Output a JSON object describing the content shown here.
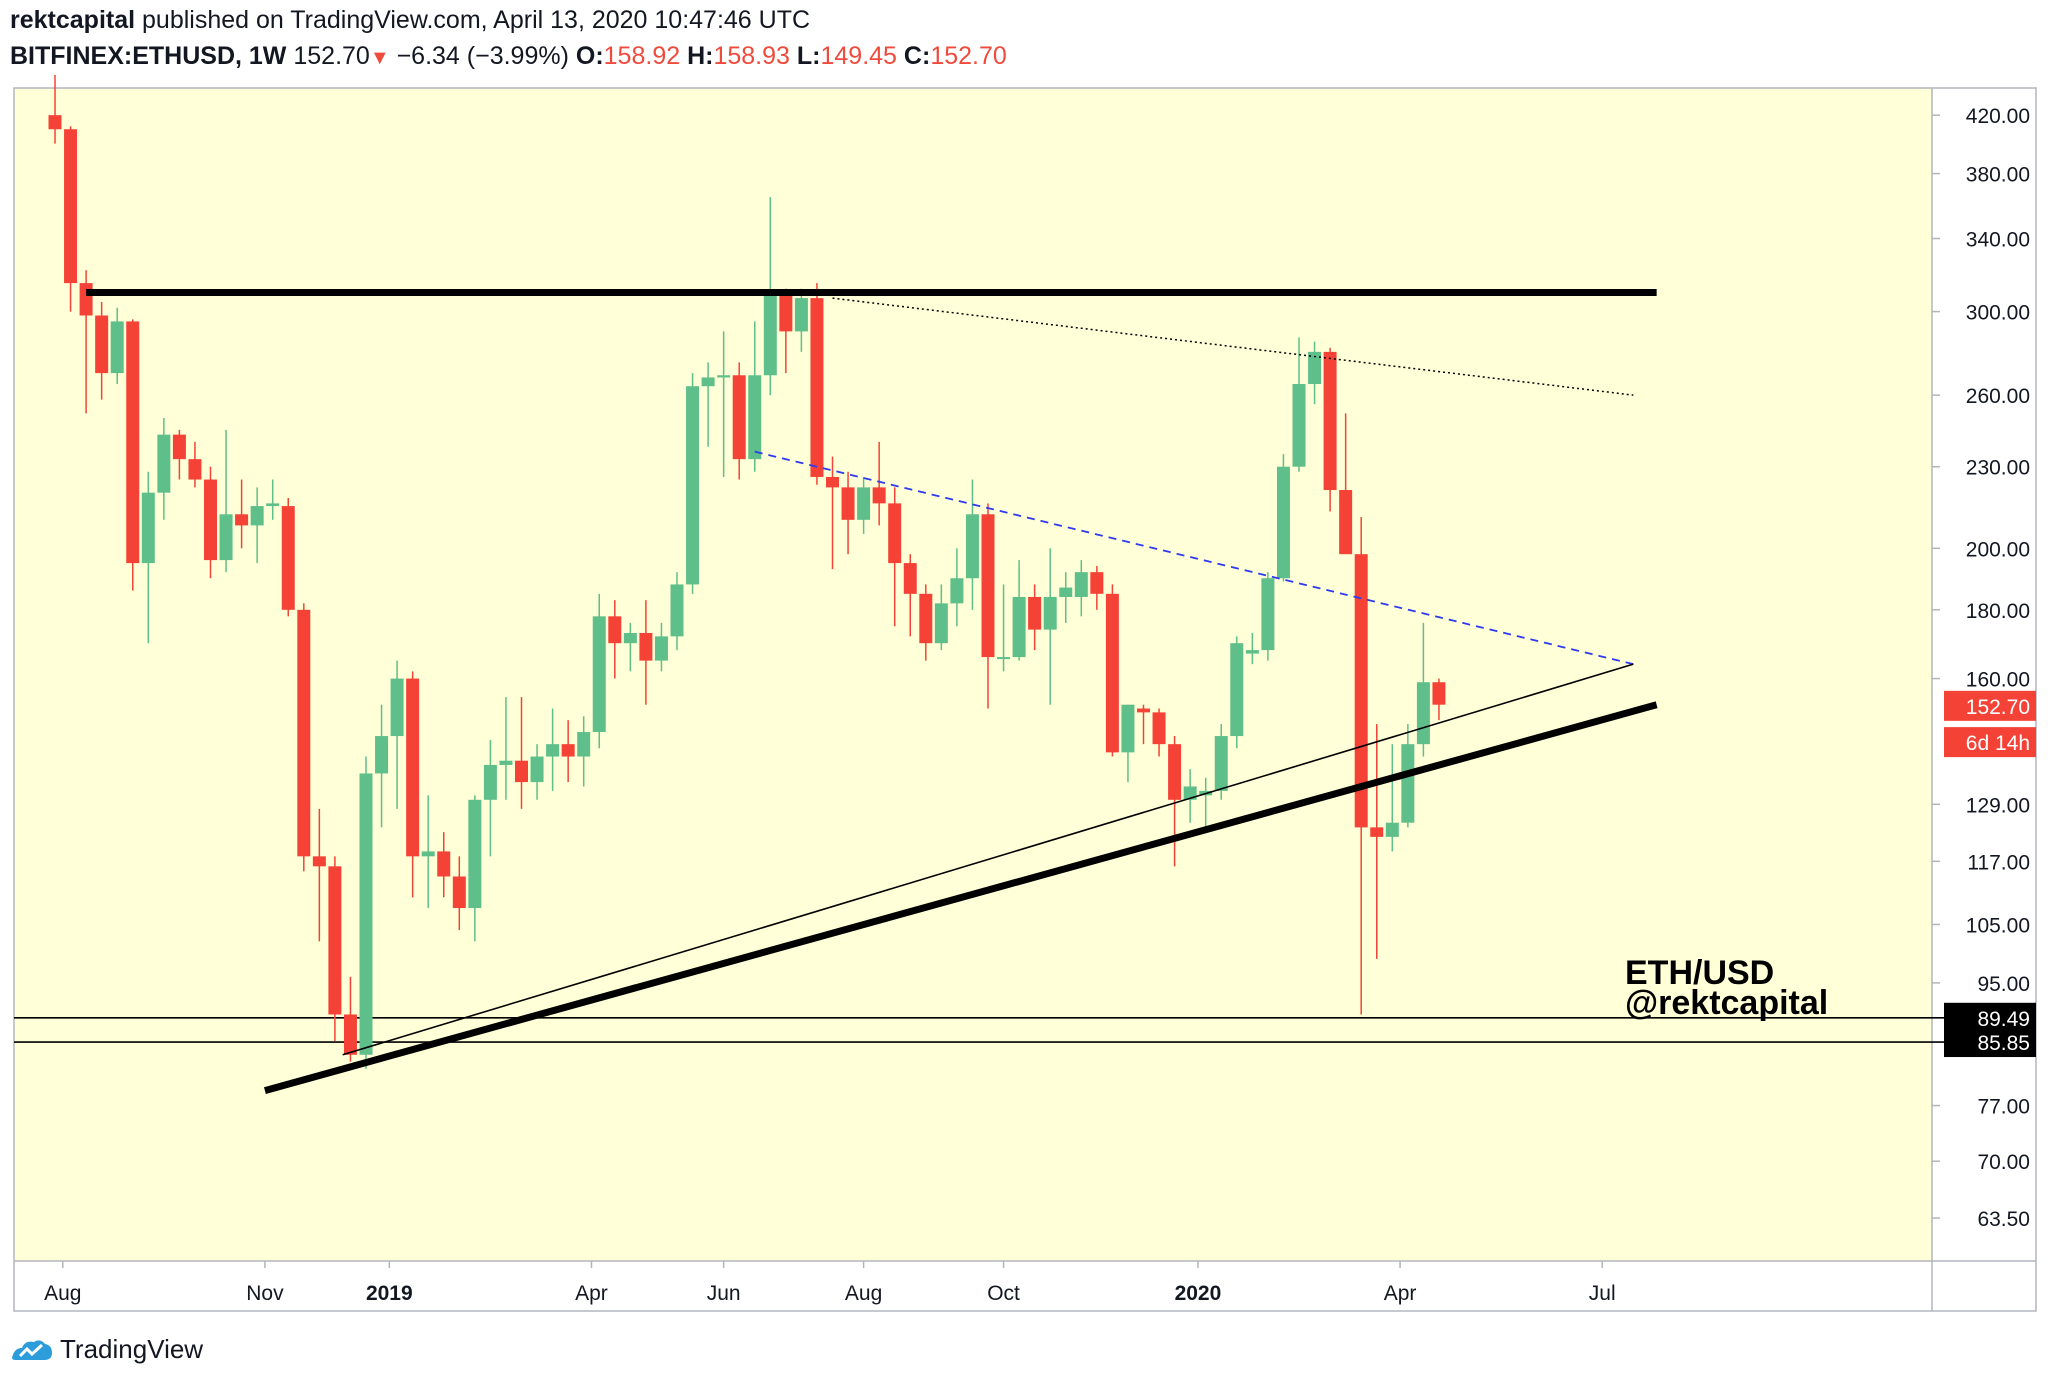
{
  "header": {
    "author": "rektcapital",
    "published_text": "published on TradingView.com, April 13, 2020 10:47:46 UTC",
    "symbol": "BITFINEX:ETHUSD, 1W",
    "last_price": "152.70",
    "change": "−6.34 (−3.99%)",
    "open_label": "O:",
    "open": "158.92",
    "high_label": "H:",
    "high": "158.93",
    "low_label": "L:",
    "low": "149.45",
    "close_label": "C:",
    "close": "152.70"
  },
  "footer": {
    "brand": "TradingView",
    "icon": "tradingview-logo-icon"
  },
  "watermark": {
    "line1": "ETH/USD",
    "line2": "@rektcapital"
  },
  "colors": {
    "background": "#ffffd8",
    "up": "#5fbf8a",
    "down": "#f44336",
    "trendline": "#000000",
    "dashed": "#2e3af0"
  },
  "chart_data": {
    "type": "candlestick",
    "title": "BITFINEX:ETHUSD, 1W",
    "scale": "log",
    "ylim": [
      59,
      440
    ],
    "y_ticks": [
      "420.00",
      "380.00",
      "340.00",
      "300.00",
      "260.00",
      "230.00",
      "200.00",
      "180.00",
      "160.00",
      "129.00",
      "117.00",
      "105.00",
      "95.00",
      "77.00",
      "70.00",
      "63.50"
    ],
    "x_ticks": [
      {
        "label": "Aug",
        "week": 0.5
      },
      {
        "label": "Nov",
        "week": 13.5
      },
      {
        "label": "2019",
        "week": 21.5,
        "bold": true
      },
      {
        "label": "Apr",
        "week": 34.5
      },
      {
        "label": "Jun",
        "week": 43
      },
      {
        "label": "Aug",
        "week": 52
      },
      {
        "label": "Oct",
        "week": 61
      },
      {
        "label": "2020",
        "week": 73.5,
        "bold": true
      },
      {
        "label": "Apr",
        "week": 86.5
      },
      {
        "label": "Jul",
        "week": 99.5
      }
    ],
    "price_labels": [
      {
        "text": "152.70",
        "value": 152.7,
        "style": "red"
      },
      {
        "text": "6d 14h",
        "value": 143.5,
        "style": "red"
      },
      {
        "text": "89.49",
        "value": 89.49,
        "style": "black"
      },
      {
        "text": "85.85",
        "value": 85.85,
        "style": "black"
      }
    ],
    "candles": [
      {
        "o": 420,
        "h": 450,
        "l": 400,
        "c": 410
      },
      {
        "o": 410,
        "h": 412,
        "l": 300,
        "c": 315
      },
      {
        "o": 315,
        "h": 322,
        "l": 252,
        "c": 298
      },
      {
        "o": 298,
        "h": 305,
        "l": 258,
        "c": 270
      },
      {
        "o": 270,
        "h": 302,
        "l": 265,
        "c": 295
      },
      {
        "o": 295,
        "h": 296,
        "l": 186,
        "c": 195
      },
      {
        "o": 195,
        "h": 228,
        "l": 170,
        "c": 220
      },
      {
        "o": 220,
        "h": 250,
        "l": 210,
        "c": 243
      },
      {
        "o": 243,
        "h": 245,
        "l": 225,
        "c": 233
      },
      {
        "o": 233,
        "h": 240,
        "l": 222,
        "c": 225
      },
      {
        "o": 225,
        "h": 230,
        "l": 190,
        "c": 196
      },
      {
        "o": 196,
        "h": 245,
        "l": 192,
        "c": 212
      },
      {
        "o": 212,
        "h": 225,
        "l": 200,
        "c": 208
      },
      {
        "o": 208,
        "h": 222,
        "l": 195,
        "c": 215
      },
      {
        "o": 215,
        "h": 225,
        "l": 210,
        "c": 216
      },
      {
        "o": 215,
        "h": 218,
        "l": 178,
        "c": 180
      },
      {
        "o": 180,
        "h": 182,
        "l": 115,
        "c": 118
      },
      {
        "o": 118,
        "h": 128,
        "l": 102,
        "c": 116
      },
      {
        "o": 116,
        "h": 118,
        "l": 86,
        "c": 90
      },
      {
        "o": 90,
        "h": 96,
        "l": 83,
        "c": 84
      },
      {
        "o": 84,
        "h": 140,
        "l": 82,
        "c": 136
      },
      {
        "o": 136,
        "h": 153,
        "l": 124,
        "c": 145
      },
      {
        "o": 145,
        "h": 165,
        "l": 128,
        "c": 160
      },
      {
        "o": 160,
        "h": 162,
        "l": 110,
        "c": 118
      },
      {
        "o": 118,
        "h": 131,
        "l": 108,
        "c": 119
      },
      {
        "o": 119,
        "h": 123,
        "l": 110,
        "c": 114
      },
      {
        "o": 114,
        "h": 118,
        "l": 104,
        "c": 108
      },
      {
        "o": 108,
        "h": 131,
        "l": 102,
        "c": 130
      },
      {
        "o": 130,
        "h": 144,
        "l": 118,
        "c": 138
      },
      {
        "o": 138,
        "h": 155,
        "l": 130,
        "c": 139
      },
      {
        "o": 139,
        "h": 155,
        "l": 128,
        "c": 134
      },
      {
        "o": 134,
        "h": 143,
        "l": 130,
        "c": 140
      },
      {
        "o": 140,
        "h": 152,
        "l": 132,
        "c": 143
      },
      {
        "o": 143,
        "h": 149,
        "l": 134,
        "c": 140
      },
      {
        "o": 140,
        "h": 150,
        "l": 133,
        "c": 146
      },
      {
        "o": 146,
        "h": 185,
        "l": 142,
        "c": 178
      },
      {
        "o": 178,
        "h": 183,
        "l": 160,
        "c": 170
      },
      {
        "o": 170,
        "h": 176,
        "l": 162,
        "c": 173
      },
      {
        "o": 173,
        "h": 183,
        "l": 153,
        "c": 165
      },
      {
        "o": 165,
        "h": 176,
        "l": 162,
        "c": 172
      },
      {
        "o": 172,
        "h": 192,
        "l": 168,
        "c": 188
      },
      {
        "o": 188,
        "h": 270,
        "l": 185,
        "c": 264
      },
      {
        "o": 264,
        "h": 275,
        "l": 238,
        "c": 268
      },
      {
        "o": 268,
        "h": 290,
        "l": 226,
        "c": 269
      },
      {
        "o": 269,
        "h": 275,
        "l": 225,
        "c": 233
      },
      {
        "o": 233,
        "h": 295,
        "l": 228,
        "c": 269
      },
      {
        "o": 269,
        "h": 365,
        "l": 260,
        "c": 310
      },
      {
        "o": 310,
        "h": 312,
        "l": 270,
        "c": 290
      },
      {
        "o": 290,
        "h": 312,
        "l": 280,
        "c": 307
      },
      {
        "o": 307,
        "h": 315,
        "l": 223,
        "c": 226
      },
      {
        "o": 226,
        "h": 234,
        "l": 193,
        "c": 222
      },
      {
        "o": 222,
        "h": 228,
        "l": 198,
        "c": 210
      },
      {
        "o": 210,
        "h": 226,
        "l": 205,
        "c": 222
      },
      {
        "o": 222,
        "h": 240,
        "l": 208,
        "c": 216
      },
      {
        "o": 216,
        "h": 222,
        "l": 175,
        "c": 195
      },
      {
        "o": 195,
        "h": 198,
        "l": 172,
        "c": 185
      },
      {
        "o": 185,
        "h": 188,
        "l": 165,
        "c": 170
      },
      {
        "o": 170,
        "h": 188,
        "l": 168,
        "c": 182
      },
      {
        "o": 182,
        "h": 200,
        "l": 175,
        "c": 190
      },
      {
        "o": 190,
        "h": 225,
        "l": 180,
        "c": 212
      },
      {
        "o": 212,
        "h": 216,
        "l": 152,
        "c": 166
      },
      {
        "o": 166,
        "h": 188,
        "l": 162,
        "c": 166
      },
      {
        "o": 166,
        "h": 196,
        "l": 165,
        "c": 184
      },
      {
        "o": 184,
        "h": 188,
        "l": 168,
        "c": 174
      },
      {
        "o": 174,
        "h": 200,
        "l": 153,
        "c": 184
      },
      {
        "o": 184,
        "h": 192,
        "l": 176,
        "c": 187
      },
      {
        "o": 184,
        "h": 196,
        "l": 178,
        "c": 192
      },
      {
        "o": 192,
        "h": 194,
        "l": 180,
        "c": 185
      },
      {
        "o": 185,
        "h": 188,
        "l": 140,
        "c": 141
      },
      {
        "o": 141,
        "h": 153,
        "l": 134,
        "c": 153
      },
      {
        "o": 152,
        "h": 153,
        "l": 143,
        "c": 151
      },
      {
        "o": 151,
        "h": 152,
        "l": 140,
        "c": 143
      },
      {
        "o": 143,
        "h": 145,
        "l": 116,
        "c": 130
      },
      {
        "o": 130,
        "h": 137,
        "l": 125,
        "c": 133
      },
      {
        "o": 131,
        "h": 135,
        "l": 123,
        "c": 132
      },
      {
        "o": 132,
        "h": 148,
        "l": 130,
        "c": 145
      },
      {
        "o": 145,
        "h": 172,
        "l": 142,
        "c": 170
      },
      {
        "o": 167,
        "h": 173,
        "l": 164,
        "c": 168
      },
      {
        "o": 168,
        "h": 192,
        "l": 165,
        "c": 190
      },
      {
        "o": 190,
        "h": 235,
        "l": 189,
        "c": 230
      },
      {
        "o": 230,
        "h": 287,
        "l": 228,
        "c": 265
      },
      {
        "o": 265,
        "h": 285,
        "l": 256,
        "c": 280
      },
      {
        "o": 280,
        "h": 282,
        "l": 213,
        "c": 221
      },
      {
        "o": 221,
        "h": 252,
        "l": 198,
        "c": 198
      },
      {
        "o": 198,
        "h": 211,
        "l": 90,
        "c": 124
      },
      {
        "o": 124,
        "h": 148,
        "l": 99,
        "c": 122
      },
      {
        "o": 122,
        "h": 143,
        "l": 119,
        "c": 125
      },
      {
        "o": 125,
        "h": 148,
        "l": 124,
        "c": 143
      },
      {
        "o": 143,
        "h": 176,
        "l": 140,
        "c": 159
      },
      {
        "o": 159,
        "h": 160,
        "l": 149,
        "c": 153
      }
    ],
    "annotations": [
      {
        "name": "horizontal-resistance",
        "kind": "thick",
        "points": [
          [
            2,
            310
          ],
          [
            103,
            310
          ]
        ]
      },
      {
        "name": "dotted-upper-trendline",
        "kind": "dotted",
        "points": [
          [
            50,
            307
          ],
          [
            101.5,
            260
          ]
        ]
      },
      {
        "name": "dashed-blue-trendline",
        "kind": "dashed",
        "points": [
          [
            45,
            236
          ],
          [
            101.5,
            164
          ]
        ]
      },
      {
        "name": "thin-support-trendline",
        "kind": "thin",
        "points": [
          [
            18.5,
            84
          ],
          [
            101.5,
            164
          ]
        ]
      },
      {
        "name": "thick-support-trendline",
        "kind": "thick",
        "points": [
          [
            13.5,
            79
          ],
          [
            103,
            153
          ]
        ]
      }
    ],
    "horizontal_levels": [
      89.49,
      85.85
    ]
  }
}
